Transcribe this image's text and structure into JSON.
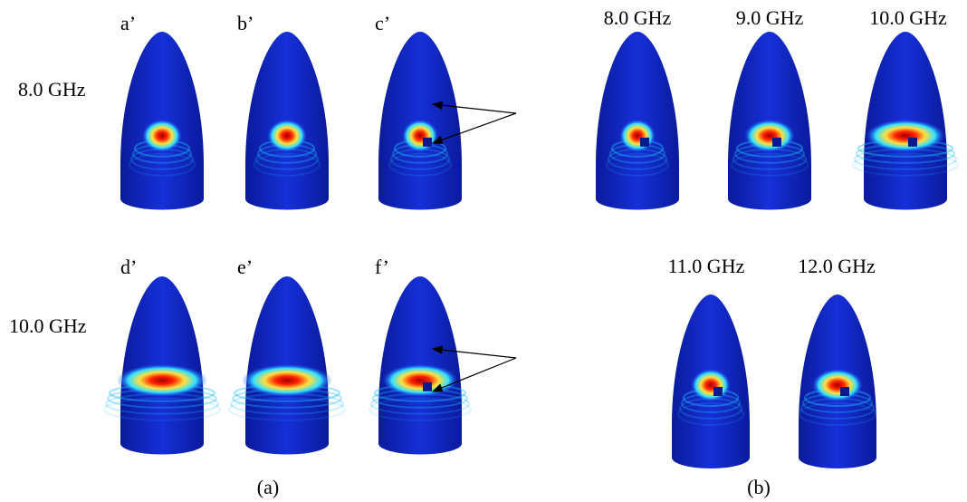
{
  "panel_a": {
    "caption": "(a)",
    "row_labels": [
      "8.0 GHz",
      "10.0 GHz"
    ],
    "panel_labels": [
      "a’",
      "b’",
      "c’",
      "d’",
      "e’",
      "f’"
    ]
  },
  "panel_b": {
    "caption": "(b)",
    "frequencies": [
      "8.0 GHz",
      "9.0 GHz",
      "10.0 GHz",
      "11.0 GHz",
      "12.0 GHz"
    ]
  }
}
